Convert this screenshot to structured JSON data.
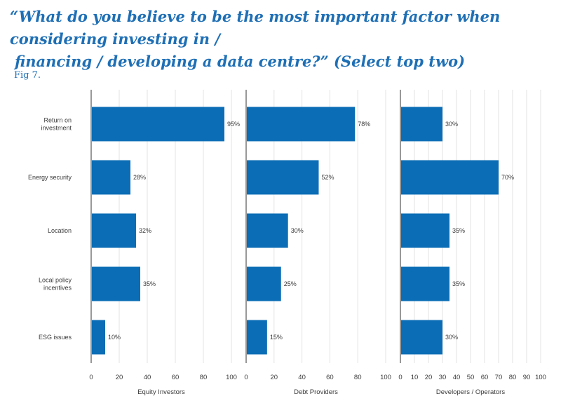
{
  "heading": {
    "line1": "“What do you believe to be the most important factor when considering investing in /",
    "line2": "financing / developing a data centre?” (Select top two)"
  },
  "fig_label": "Fig 7.",
  "colors": {
    "bar": "#0b6db5",
    "grid": "#e3e3e3",
    "axis": "#555555",
    "title": "#1e6fb5"
  },
  "chart_data": [
    {
      "type": "bar",
      "orientation": "horizontal",
      "xlabel": "Equity Investors",
      "categories": [
        "Return on investment",
        "Energy security",
        "Location",
        "Local policy incentives",
        "ESG issues"
      ],
      "values": [
        95,
        28,
        32,
        35,
        10
      ],
      "value_labels": [
        "95%",
        "28%",
        "32%",
        "35%",
        "10%"
      ],
      "xlim": [
        0,
        100
      ],
      "xticks": [
        0,
        20,
        40,
        60,
        80,
        100
      ],
      "grid": true
    },
    {
      "type": "bar",
      "orientation": "horizontal",
      "xlabel": "Debt Providers",
      "categories": [
        "Return on investment",
        "Energy security",
        "Location",
        "Local policy incentives",
        "ESG issues"
      ],
      "values": [
        78,
        52,
        30,
        25,
        15
      ],
      "value_labels": [
        "78%",
        "52%",
        "30%",
        "25%",
        "15%"
      ],
      "xlim": [
        0,
        100
      ],
      "xticks": [
        0,
        20,
        40,
        60,
        80,
        100
      ],
      "grid": true
    },
    {
      "type": "bar",
      "orientation": "horizontal",
      "xlabel": "Developers / Operators",
      "categories": [
        "Return on investment",
        "Energy security",
        "Location",
        "Local policy incentives",
        "ESG issues"
      ],
      "values": [
        30,
        70,
        35,
        35,
        30
      ],
      "value_labels": [
        "30%",
        "70%",
        "35%",
        "35%",
        "30%"
      ],
      "xlim": [
        0,
        100
      ],
      "xticks": [
        0,
        10,
        20,
        30,
        40,
        50,
        60,
        70,
        80,
        90,
        100
      ],
      "grid": true
    }
  ],
  "category_labels": [
    [
      "Return on",
      "investment"
    ],
    [
      "Energy security"
    ],
    [
      "Location"
    ],
    [
      "Local policy",
      "incentives"
    ],
    [
      "ESG issues"
    ]
  ]
}
